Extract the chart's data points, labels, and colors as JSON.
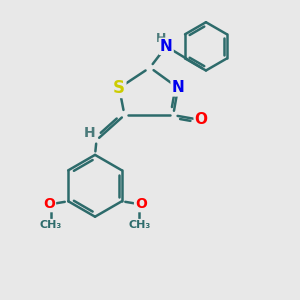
{
  "background_color": "#e8e8e8",
  "atom_colors": {
    "S": "#cccc00",
    "N": "#0000ee",
    "O": "#ff0000",
    "H": "#4a7a7a",
    "C": "#2d6b6b",
    "default": "#2d6b6b"
  },
  "bond_color": "#2d6b6b",
  "bond_width": 1.8,
  "fig_width": 3.0,
  "fig_height": 3.0,
  "dpi": 100
}
